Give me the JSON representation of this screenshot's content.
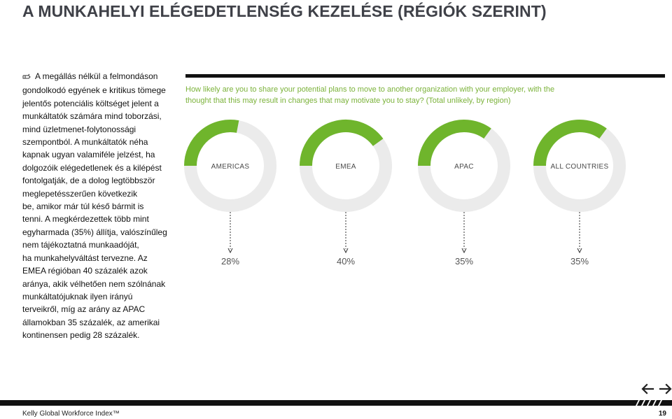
{
  "header": {
    "title": "A MUNKAHELYI ELÉGEDETLENSÉG KEZELÉSE (RÉGIÓK SZERINT)"
  },
  "intro": {
    "icon": "pointing-hand-icon",
    "lines": [
      "A megállás nélkül a felmondáson",
      "gondolkodó egyének e kritikus tömege",
      "jelentős potenciális költséget jelent a",
      "munkáltatók számára mind toborzási,",
      "mind üzletmenet-folytonossági",
      "szempontból. A munkáltatók néha",
      "kapnak ugyan valamiféle jelzést, ha",
      "dolgozóik elégedetlenek és a kilépést",
      "fontolgatják, de a dolog legtöbbször",
      "meglepetésszerűen következik",
      "be, amikor már túl késő bármit is",
      "tenni. A megkérdezettek több mint",
      "egyharmada (35%) állítja, valószínűleg",
      "nem tájékoztatná munkaadóját,",
      "ha munkahelyváltást tervezne. Az",
      "EMEA régióban 40 százalék azok",
      "aránya, akik vélhetően nem szólnának",
      "munkáltatójuknak ilyen irányú",
      "terveikről, míg az arány az APAC",
      "államokban 35 százalék, az amerikai",
      "kontinensen pedig 28 százalék."
    ]
  },
  "chart": {
    "subtitle_lines": [
      "How likely are you to share your potential plans to move to another organization with your employer, with the",
      "thought that this may result in changes that may motivate you to stay? (Total unlikely, by region)"
    ]
  },
  "chart_data": {
    "type": "pie",
    "style": "donut",
    "categories": [
      "AMERICAS",
      "EMEA",
      "APAC",
      "ALL COUNTRIES"
    ],
    "values": [
      28,
      40,
      35,
      35
    ],
    "value_labels": [
      "28%",
      "40%",
      "35%",
      "35%"
    ],
    "unit": "%"
  },
  "colors": {
    "accent": "#6fb52c",
    "track": "#ebebeb",
    "title": "#3f4148",
    "subtitle": "#7bb23a"
  },
  "footer": {
    "left": "Kelly Global Workforce Index™",
    "page": "19"
  },
  "nav": {
    "prev_icon": "arrow-left-icon",
    "next_icon": "arrow-right-icon"
  }
}
